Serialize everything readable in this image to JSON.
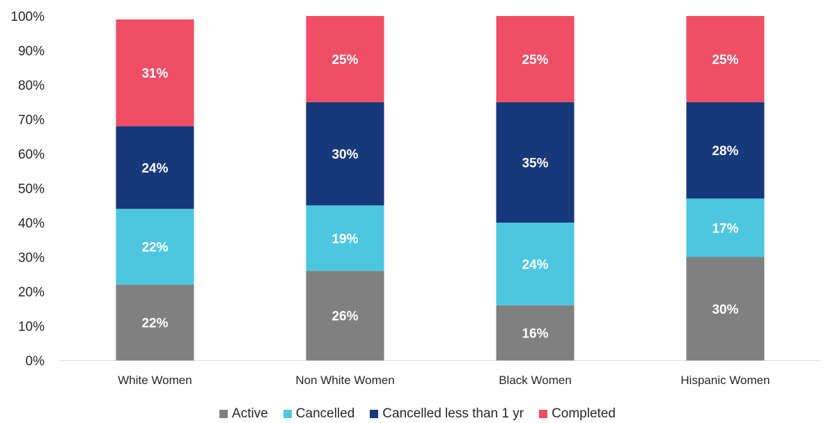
{
  "chart_data": {
    "type": "bar",
    "stacked": true,
    "categories": [
      "White Women",
      "Non White Women",
      "Black Women",
      "Hispanic Women"
    ],
    "series": [
      {
        "name": "Active",
        "color": "#808080",
        "values": [
          22,
          26,
          16,
          30
        ],
        "labels": [
          "22%",
          "26%",
          "16%",
          "30%"
        ]
      },
      {
        "name": "Cancelled",
        "color": "#4DC7E0",
        "values": [
          22,
          19,
          24,
          17
        ],
        "labels": [
          "22%",
          "19%",
          "24%",
          "17%"
        ]
      },
      {
        "name": "Cancelled less than 1 yr",
        "color": "#17387A",
        "values": [
          24,
          30,
          35,
          28
        ],
        "labels": [
          "24%",
          "30%",
          "35%",
          "28%"
        ]
      },
      {
        "name": "Completed",
        "color": "#F04E66",
        "values": [
          31,
          25,
          25,
          25
        ],
        "labels": [
          "31%",
          "25%",
          "25%",
          "25%"
        ]
      }
    ],
    "ylim": [
      0,
      100
    ],
    "yticks": [
      "0%",
      "10%",
      "20%",
      "30%",
      "40%",
      "50%",
      "60%",
      "70%",
      "80%",
      "90%",
      "100%"
    ],
    "grid": false,
    "legend_position": "bottom",
    "title": "",
    "xlabel": "",
    "ylabel": ""
  }
}
